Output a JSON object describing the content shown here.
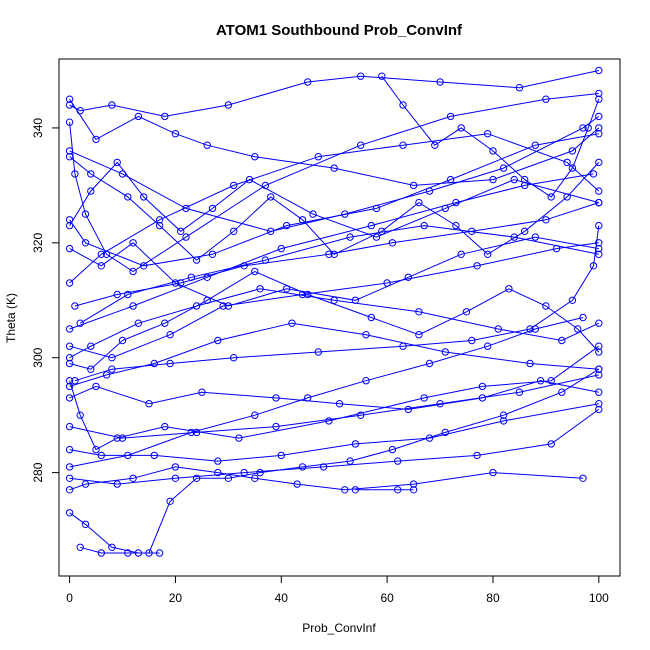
{
  "chart_data": {
    "type": "line",
    "title": "ATOM1 Southbound Prob_ConvInf",
    "xlabel": "Prob_ConvInf",
    "ylabel": "Theta (K)",
    "xlim": [
      -2,
      104
    ],
    "ylim": [
      262,
      352
    ],
    "x_ticks": [
      0,
      20,
      40,
      60,
      80,
      100
    ],
    "y_ticks": [
      280,
      300,
      320,
      340
    ],
    "grid": false,
    "legend": "none",
    "markers": "open-circle",
    "color": "#0000ff",
    "series": [
      {
        "x": [
          0,
          5,
          13,
          20,
          26,
          35,
          50,
          65,
          80,
          95,
          100
        ],
        "y": [
          345,
          338,
          342,
          339,
          337,
          335,
          333,
          330,
          331,
          336,
          340
        ]
      },
      {
        "x": [
          100,
          85,
          70,
          55,
          45,
          30,
          18,
          8,
          2,
          0
        ],
        "y": [
          350,
          347,
          348,
          349,
          348,
          344,
          342,
          344,
          343,
          344
        ]
      },
      {
        "x": [
          0,
          10,
          22,
          38,
          52,
          68,
          82,
          97,
          100
        ],
        "y": [
          336,
          332,
          326,
          322,
          325,
          329,
          333,
          340,
          342
        ]
      },
      {
        "x": [
          100,
          88,
          72,
          58,
          41,
          27,
          14,
          3,
          0
        ],
        "y": [
          339,
          337,
          331,
          326,
          323,
          318,
          316,
          320,
          324
        ]
      },
      {
        "x": [
          0,
          6,
          17,
          31,
          47,
          63,
          79,
          94,
          100
        ],
        "y": [
          313,
          318,
          324,
          330,
          335,
          337,
          339,
          334,
          329
        ]
      },
      {
        "x": [
          100,
          90,
          76,
          61,
          49,
          33,
          21,
          9,
          1
        ],
        "y": [
          327,
          324,
          322,
          320,
          318,
          316,
          313,
          311,
          309
        ]
      },
      {
        "x": [
          0,
          12,
          26,
          40,
          57,
          73,
          86,
          99
        ],
        "y": [
          305,
          309,
          314,
          319,
          323,
          327,
          330,
          332
        ]
      },
      {
        "x": [
          100,
          84,
          67,
          53,
          37,
          23,
          11,
          2
        ],
        "y": [
          318,
          321,
          323,
          321,
          317,
          314,
          311,
          306
        ]
      },
      {
        "x": [
          0,
          8,
          19,
          29,
          44,
          60,
          77,
          92,
          100
        ],
        "y": [
          302,
          300,
          304,
          309,
          311,
          313,
          316,
          319,
          320
        ]
      },
      {
        "x": [
          100,
          93,
          81,
          66,
          50,
          36,
          24,
          13,
          4,
          0
        ],
        "y": [
          306,
          303,
          305,
          308,
          310,
          312,
          309,
          306,
          302,
          300
        ]
      },
      {
        "x": [
          0,
          7,
          16,
          28,
          42,
          56,
          71,
          87,
          100
        ],
        "y": [
          295,
          297,
          299,
          303,
          306,
          304,
          301,
          299,
          298
        ]
      },
      {
        "x": [
          100,
          89,
          78,
          64,
          51,
          39,
          25,
          15,
          5,
          0
        ],
        "y": [
          294,
          296,
          293,
          291,
          292,
          293,
          294,
          292,
          295,
          293
        ]
      },
      {
        "x": [
          0,
          10,
          24,
          39,
          55,
          70,
          85,
          100
        ],
        "y": [
          288,
          286,
          287,
          288,
          290,
          292,
          294,
          297
        ]
      },
      {
        "x": [
          100,
          82,
          68,
          54,
          40,
          28,
          16,
          6,
          0
        ],
        "y": [
          292,
          289,
          286,
          285,
          283,
          282,
          283,
          283,
          284
        ]
      },
      {
        "x": [
          0,
          9,
          20,
          33,
          48,
          62,
          77,
          91,
          100
        ],
        "y": [
          279,
          278,
          279,
          280,
          281,
          282,
          283,
          285,
          291
        ]
      },
      {
        "x": [
          97,
          80,
          65,
          52,
          43,
          35,
          28,
          20,
          12,
          3,
          0
        ],
        "y": [
          279,
          280,
          278,
          277,
          278,
          279,
          280,
          281,
          279,
          278,
          277
        ]
      },
      {
        "x": [
          0,
          3,
          8,
          13,
          17
        ],
        "y": [
          273,
          271,
          267,
          266,
          266
        ]
      },
      {
        "x": [
          2,
          6,
          11,
          15,
          19,
          24,
          30,
          36,
          44,
          53,
          61,
          71,
          82,
          93,
          100
        ],
        "y": [
          267,
          266,
          266,
          266,
          275,
          279,
          279,
          280,
          281,
          282,
          284,
          287,
          290,
          294,
          298
        ]
      },
      {
        "x": [
          100,
          94,
          86,
          79,
          73,
          66,
          59,
          50,
          44,
          38,
          31,
          24,
          17,
          11,
          4,
          0
        ],
        "y": [
          334,
          328,
          322,
          318,
          323,
          327,
          322,
          318,
          324,
          328,
          322,
          317,
          323,
          328,
          332,
          335
        ]
      },
      {
        "x": [
          0,
          4,
          9,
          14,
          21,
          27,
          34,
          46,
          58,
          71,
          84,
          100
        ],
        "y": [
          323,
          329,
          334,
          328,
          322,
          326,
          331,
          325,
          321,
          326,
          331,
          327
        ]
      },
      {
        "x": [
          100,
          96,
          90,
          83,
          75,
          66,
          57,
          45,
          35,
          26,
          18,
          10,
          4,
          0
        ],
        "y": [
          301,
          305,
          309,
          312,
          308,
          304,
          307,
          311,
          315,
          310,
          306,
          303,
          298,
          299
        ]
      },
      {
        "x": [
          0,
          6,
          12,
          20,
          30,
          41,
          54,
          64,
          74,
          88,
          100
        ],
        "y": [
          319,
          316,
          320,
          313,
          309,
          312,
          310,
          314,
          318,
          321,
          319
        ]
      },
      {
        "x": [
          54,
          62,
          65
        ],
        "y": [
          277,
          277,
          277
        ]
      },
      {
        "x": [
          0,
          2,
          5,
          9,
          18,
          32,
          49,
          67,
          78,
          91,
          100
        ],
        "y": [
          296,
          290,
          284,
          286,
          288,
          286,
          289,
          293,
          295,
          296,
          302
        ]
      },
      {
        "x": [
          100,
          98,
          95,
          91,
          86,
          80,
          74,
          69,
          63,
          59
        ],
        "y": [
          345,
          340,
          333,
          328,
          331,
          336,
          340,
          337,
          344,
          349
        ]
      },
      {
        "x": [
          0,
          1,
          3,
          7,
          12,
          22,
          37,
          55,
          72,
          90,
          100
        ],
        "y": [
          341,
          332,
          325,
          318,
          315,
          321,
          330,
          337,
          342,
          345,
          346
        ]
      },
      {
        "x": [
          100,
          99,
          95,
          87,
          76,
          63,
          47,
          31,
          19,
          8,
          1
        ],
        "y": [
          323,
          316,
          310,
          305,
          303,
          302,
          301,
          300,
          299,
          298,
          296
        ]
      },
      {
        "x": [
          0,
          11,
          23,
          35,
          45,
          56,
          68,
          79,
          88,
          97
        ],
        "y": [
          281,
          283,
          287,
          290,
          293,
          296,
          299,
          302,
          305,
          307
        ]
      }
    ]
  }
}
